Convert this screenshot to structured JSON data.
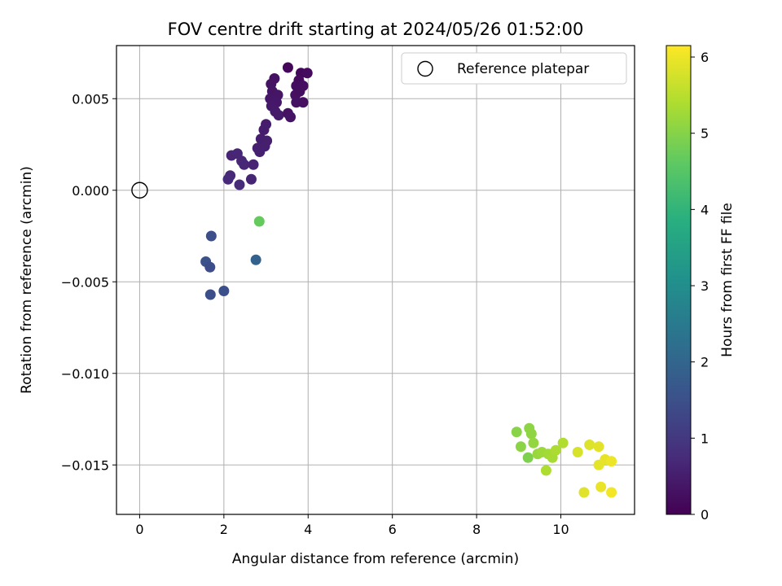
{
  "chart_data": {
    "type": "scatter",
    "title": "FOV centre drift starting at 2024/05/26 01:52:00",
    "xlabel": "Angular distance from reference (arcmin)",
    "ylabel": "Rotation from reference (arcmin)",
    "xlim": [
      -0.55,
      11.75
    ],
    "ylim": [
      -0.0177,
      0.0079
    ],
    "xticks": [
      0,
      2,
      4,
      6,
      8,
      10
    ],
    "xtick_labels": [
      "0",
      "2",
      "4",
      "6",
      "8",
      "10"
    ],
    "yticks": [
      0.005,
      0.0,
      -0.005,
      -0.01,
      -0.015
    ],
    "ytick_labels": [
      "0.005",
      "0.000",
      "−0.005",
      "−0.010",
      "−0.015"
    ],
    "grid": true,
    "legend": {
      "position": "top-right",
      "entries": [
        "Reference platepar"
      ]
    },
    "reference_point": {
      "label": "Reference platepar",
      "x": 0.0,
      "y": 0.0
    },
    "colorbar": {
      "label": "Hours from first FF file",
      "colormap": "viridis",
      "range": [
        0,
        6.15
      ],
      "ticks": [
        0,
        1,
        2,
        3,
        4,
        5,
        6
      ],
      "tick_labels": [
        "0",
        "1",
        "2",
        "3",
        "4",
        "5",
        "6"
      ]
    },
    "points": [
      {
        "x": 3.52,
        "y": 0.0067,
        "h": 0.1
      },
      {
        "x": 3.83,
        "y": 0.0064,
        "h": 0.15
      },
      {
        "x": 3.98,
        "y": 0.0064,
        "h": 0.18
      },
      {
        "x": 3.78,
        "y": 0.006,
        "h": 0.2
      },
      {
        "x": 3.2,
        "y": 0.0061,
        "h": 0.3
      },
      {
        "x": 3.12,
        "y": 0.0058,
        "h": 0.32
      },
      {
        "x": 3.72,
        "y": 0.0057,
        "h": 0.22
      },
      {
        "x": 3.88,
        "y": 0.0057,
        "h": 0.24
      },
      {
        "x": 3.15,
        "y": 0.0054,
        "h": 0.34
      },
      {
        "x": 3.28,
        "y": 0.0052,
        "h": 0.36
      },
      {
        "x": 3.7,
        "y": 0.0052,
        "h": 0.26
      },
      {
        "x": 3.8,
        "y": 0.0054,
        "h": 0.25
      },
      {
        "x": 3.1,
        "y": 0.005,
        "h": 0.38
      },
      {
        "x": 3.25,
        "y": 0.0048,
        "h": 0.4
      },
      {
        "x": 3.72,
        "y": 0.0048,
        "h": 0.28
      },
      {
        "x": 3.88,
        "y": 0.0048,
        "h": 0.27
      },
      {
        "x": 3.13,
        "y": 0.0046,
        "h": 0.42
      },
      {
        "x": 3.22,
        "y": 0.0043,
        "h": 0.44
      },
      {
        "x": 3.3,
        "y": 0.0041,
        "h": 0.45
      },
      {
        "x": 3.52,
        "y": 0.0042,
        "h": 0.3
      },
      {
        "x": 3.58,
        "y": 0.004,
        "h": 0.32
      },
      {
        "x": 3.0,
        "y": 0.0036,
        "h": 0.48
      },
      {
        "x": 2.95,
        "y": 0.0033,
        "h": 0.5
      },
      {
        "x": 2.88,
        "y": 0.0028,
        "h": 0.52
      },
      {
        "x": 3.02,
        "y": 0.0027,
        "h": 0.53
      },
      {
        "x": 2.97,
        "y": 0.0024,
        "h": 0.54
      },
      {
        "x": 2.8,
        "y": 0.0023,
        "h": 0.55
      },
      {
        "x": 2.85,
        "y": 0.0021,
        "h": 0.56
      },
      {
        "x": 2.18,
        "y": 0.0019,
        "h": 0.65
      },
      {
        "x": 2.32,
        "y": 0.002,
        "h": 0.66
      },
      {
        "x": 2.42,
        "y": 0.0016,
        "h": 0.68
      },
      {
        "x": 2.48,
        "y": 0.0014,
        "h": 0.7
      },
      {
        "x": 2.7,
        "y": 0.0014,
        "h": 0.62
      },
      {
        "x": 2.15,
        "y": 0.0008,
        "h": 0.72
      },
      {
        "x": 2.1,
        "y": 0.0006,
        "h": 0.74
      },
      {
        "x": 2.65,
        "y": 0.0006,
        "h": 0.64
      },
      {
        "x": 2.37,
        "y": 0.0003,
        "h": 0.76
      },
      {
        "x": 2.84,
        "y": -0.0017,
        "h": 4.7
      },
      {
        "x": 1.7,
        "y": -0.0025,
        "h": 1.5
      },
      {
        "x": 1.57,
        "y": -0.0039,
        "h": 1.55
      },
      {
        "x": 1.67,
        "y": -0.0042,
        "h": 1.45
      },
      {
        "x": 2.76,
        "y": -0.0038,
        "h": 1.95
      },
      {
        "x": 1.68,
        "y": -0.0057,
        "h": 1.5
      },
      {
        "x": 2.0,
        "y": -0.0055,
        "h": 1.52
      },
      {
        "x": 8.95,
        "y": -0.0132,
        "h": 5.05
      },
      {
        "x": 9.25,
        "y": -0.013,
        "h": 5.1
      },
      {
        "x": 9.3,
        "y": -0.0133,
        "h": 5.12
      },
      {
        "x": 9.35,
        "y": -0.0138,
        "h": 5.15
      },
      {
        "x": 9.05,
        "y": -0.014,
        "h": 5.08
      },
      {
        "x": 9.22,
        "y": -0.0146,
        "h": 4.95
      },
      {
        "x": 9.45,
        "y": -0.0144,
        "h": 5.2
      },
      {
        "x": 9.55,
        "y": -0.0143,
        "h": 5.25
      },
      {
        "x": 9.7,
        "y": -0.0144,
        "h": 5.3
      },
      {
        "x": 9.8,
        "y": -0.0146,
        "h": 5.35
      },
      {
        "x": 9.88,
        "y": -0.0142,
        "h": 5.4
      },
      {
        "x": 10.05,
        "y": -0.0138,
        "h": 5.45
      },
      {
        "x": 9.65,
        "y": -0.0153,
        "h": 5.42
      },
      {
        "x": 10.4,
        "y": -0.0143,
        "h": 5.8
      },
      {
        "x": 10.68,
        "y": -0.0139,
        "h": 5.85
      },
      {
        "x": 10.9,
        "y": -0.014,
        "h": 5.9
      },
      {
        "x": 11.05,
        "y": -0.0147,
        "h": 5.95
      },
      {
        "x": 10.9,
        "y": -0.015,
        "h": 5.92
      },
      {
        "x": 11.2,
        "y": -0.0148,
        "h": 6.0
      },
      {
        "x": 10.55,
        "y": -0.0165,
        "h": 5.88
      },
      {
        "x": 10.95,
        "y": -0.0162,
        "h": 5.97
      },
      {
        "x": 11.2,
        "y": -0.0165,
        "h": 6.05
      }
    ]
  }
}
